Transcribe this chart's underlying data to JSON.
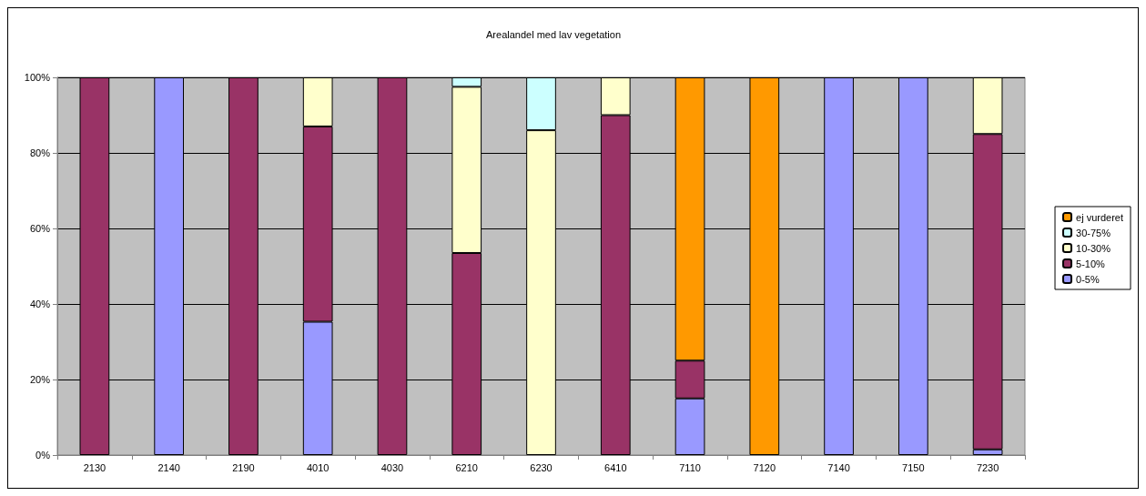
{
  "chart_data": {
    "type": "bar",
    "title": "Arealandel med lav vegetation",
    "stacked": true,
    "categories": [
      "2130",
      "2140",
      "2190",
      "4010",
      "4030",
      "6210",
      "6230",
      "6410",
      "7110",
      "7120",
      "7140",
      "7150",
      "7230"
    ],
    "series": [
      {
        "name": "0-5%",
        "color": "#9999ff",
        "values": [
          null,
          100,
          null,
          35.3,
          null,
          null,
          null,
          null,
          15,
          null,
          100,
          100,
          1.5
        ]
      },
      {
        "name": "5-10%",
        "color": "#993366",
        "values": [
          100,
          null,
          100,
          51.7,
          100,
          53.5,
          null,
          90,
          10,
          null,
          null,
          null,
          83.5
        ]
      },
      {
        "name": "10-30%",
        "color": "#ffffcc",
        "values": [
          null,
          null,
          null,
          13,
          null,
          44,
          86,
          10,
          null,
          null,
          null,
          null,
          15
        ]
      },
      {
        "name": "30-75%",
        "color": "#ccffff",
        "values": [
          null,
          null,
          null,
          null,
          null,
          2.5,
          14,
          null,
          null,
          null,
          null,
          null,
          null
        ]
      },
      {
        "name": "ej vurderet",
        "color": "#ff9900",
        "values": [
          null,
          null,
          null,
          null,
          null,
          null,
          null,
          null,
          75,
          100,
          null,
          null,
          null
        ]
      }
    ],
    "ylim": [
      0,
      100
    ],
    "yticks": [
      {
        "value": 0,
        "label": "0%"
      },
      {
        "value": 20,
        "label": "20%"
      },
      {
        "value": 40,
        "label": "40%"
      },
      {
        "value": 60,
        "label": "60%"
      },
      {
        "value": 80,
        "label": "80%"
      },
      {
        "value": 100,
        "label": "100%"
      }
    ],
    "grid": "y",
    "legend": "right"
  }
}
